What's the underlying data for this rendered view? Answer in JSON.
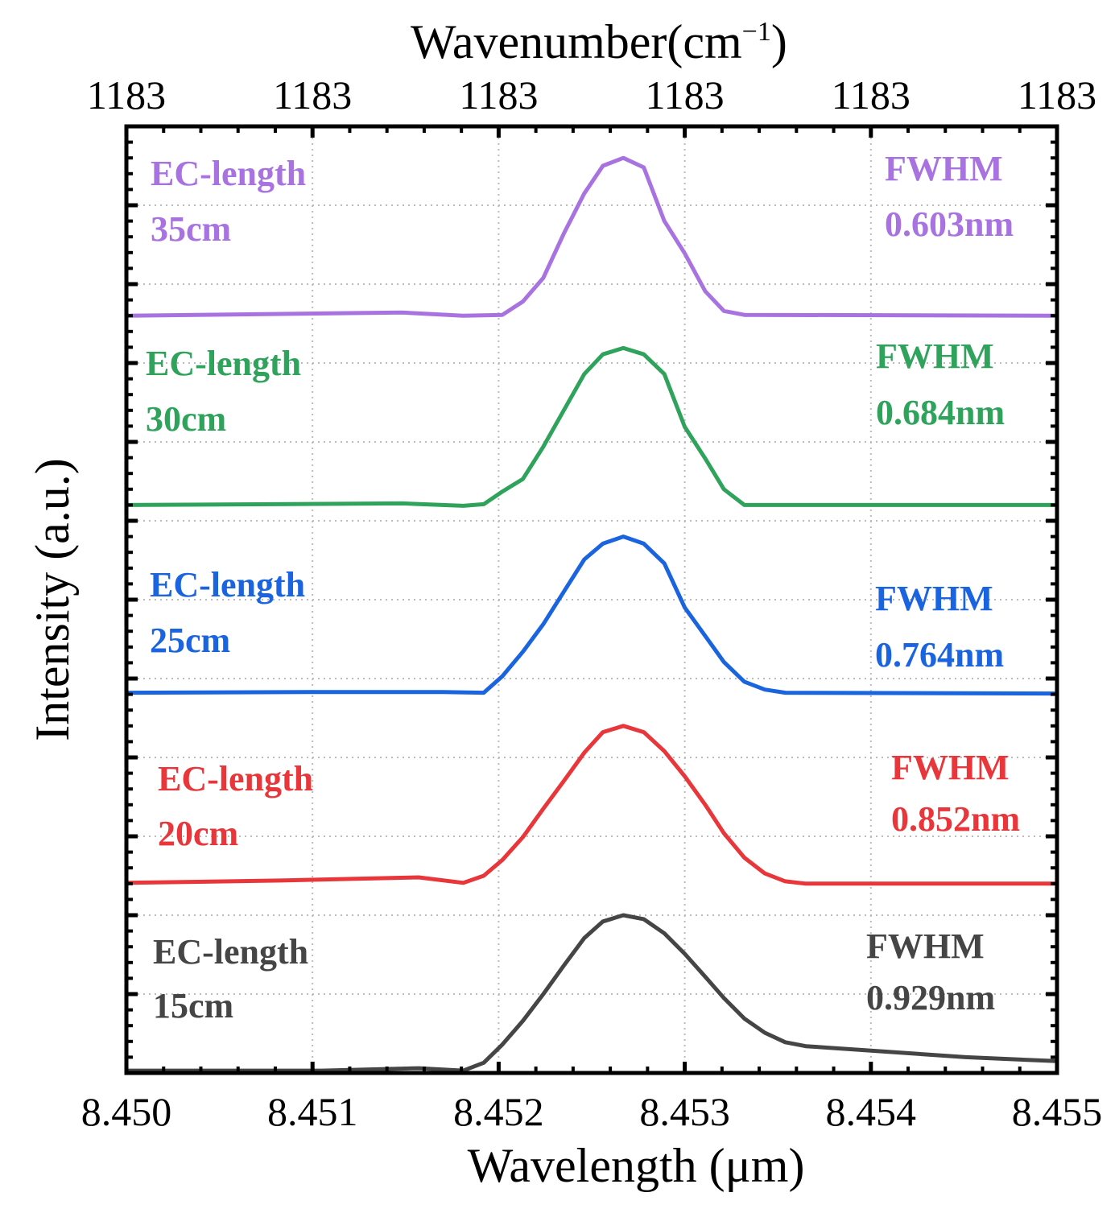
{
  "chart_data": {
    "type": "line",
    "xlabel": "Wavelength (μm)",
    "ylabel": "Intensity (a.u.)",
    "x2label_main": "Wavenumber(cm",
    "x2label_sup": "−1",
    "x2label_close": ")",
    "xlim": [
      8.45,
      8.455
    ],
    "ylim": [
      0,
      12
    ],
    "grid": true,
    "xticks": [
      "8.450",
      "8.451",
      "8.452",
      "8.453",
      "8.454",
      "8.455"
    ],
    "x2ticks": [
      "1183",
      "1183",
      "1183",
      "1183",
      "1183",
      "1183"
    ],
    "series": [
      {
        "name": "EC-length 15cm",
        "label_line1": "EC-length",
        "label_line2": "15cm",
        "fwhm_label": "FWHM",
        "fwhm_value": "0.929nm",
        "color": "#454545",
        "x": [
          8.45,
          8.45105,
          8.45157,
          8.45181,
          8.45192,
          8.45202,
          8.45213,
          8.45224,
          8.45235,
          8.45246,
          8.45256,
          8.45267,
          8.45278,
          8.45289,
          8.453,
          8.45311,
          8.45321,
          8.45332,
          8.45343,
          8.45354,
          8.45365,
          8.45408,
          8.45451,
          8.455
        ],
        "y": [
          0.03,
          0.03,
          0.06,
          0.03,
          0.13,
          0.36,
          0.66,
          1.0,
          1.36,
          1.71,
          1.92,
          2.0,
          1.95,
          1.77,
          1.51,
          1.22,
          0.95,
          0.69,
          0.51,
          0.39,
          0.34,
          0.27,
          0.2,
          0.15
        ]
      },
      {
        "name": "EC-length 20cm",
        "label_line1": "EC-length",
        "label_line2": "20cm",
        "fwhm_label": "FWHM",
        "fwhm_value": "0.852nm",
        "color": "#e8363a",
        "x": [
          8.45,
          8.45083,
          8.45157,
          8.45181,
          8.45192,
          8.45202,
          8.45213,
          8.45224,
          8.45235,
          8.45246,
          8.45256,
          8.45267,
          8.45278,
          8.45289,
          8.453,
          8.45311,
          8.45321,
          8.45332,
          8.45343,
          8.45354,
          8.45365,
          8.455
        ],
        "y": [
          2.41,
          2.44,
          2.48,
          2.41,
          2.5,
          2.7,
          2.99,
          3.35,
          3.7,
          4.06,
          4.32,
          4.4,
          4.32,
          4.08,
          3.76,
          3.4,
          3.04,
          2.73,
          2.53,
          2.43,
          2.4,
          2.4
        ]
      },
      {
        "name": "EC-length 25cm",
        "label_line1": "EC-length",
        "label_line2": "25cm",
        "fwhm_label": "FWHM",
        "fwhm_value": "0.764nm",
        "color": "#1b64e0",
        "x": [
          8.45,
          8.45105,
          8.4517,
          8.45192,
          8.45202,
          8.45213,
          8.45224,
          8.45235,
          8.45246,
          8.45256,
          8.45267,
          8.45278,
          8.45289,
          8.453,
          8.45311,
          8.45321,
          8.45332,
          8.45343,
          8.45354,
          8.455
        ],
        "y": [
          4.82,
          4.83,
          4.83,
          4.82,
          5.03,
          5.34,
          5.69,
          6.1,
          6.51,
          6.71,
          6.8,
          6.71,
          6.46,
          5.9,
          5.54,
          5.21,
          4.96,
          4.86,
          4.82,
          4.81
        ]
      },
      {
        "name": "EC-length 30cm",
        "label_line1": "EC-length",
        "label_line2": "30cm",
        "fwhm_label": "FWHM",
        "fwhm_value": "0.684nm",
        "color": "#2fa35c",
        "x": [
          8.45,
          8.45148,
          8.45181,
          8.45192,
          8.45202,
          8.45213,
          8.45224,
          8.45235,
          8.45246,
          8.45256,
          8.45267,
          8.45278,
          8.45289,
          8.453,
          8.45311,
          8.45321,
          8.45332,
          8.455
        ],
        "y": [
          7.2,
          7.22,
          7.19,
          7.21,
          7.37,
          7.53,
          7.94,
          8.4,
          8.86,
          9.11,
          9.19,
          9.11,
          8.86,
          8.19,
          7.79,
          7.4,
          7.2,
          7.2
        ]
      },
      {
        "name": "EC-length 35cm",
        "label_line1": "EC-length",
        "label_line2": "35cm",
        "fwhm_label": "FWHM",
        "fwhm_value": "0.603nm",
        "color": "#a873e0",
        "x": [
          8.45,
          8.45148,
          8.45181,
          8.45202,
          8.45213,
          8.45224,
          8.45235,
          8.45246,
          8.45256,
          8.45267,
          8.45278,
          8.45289,
          8.453,
          8.45311,
          8.45321,
          8.45332,
          8.455
        ],
        "y": [
          9.6,
          9.64,
          9.6,
          9.61,
          9.78,
          10.08,
          10.64,
          11.15,
          11.5,
          11.6,
          11.48,
          10.8,
          10.39,
          9.91,
          9.66,
          9.61,
          9.6
        ]
      }
    ]
  }
}
